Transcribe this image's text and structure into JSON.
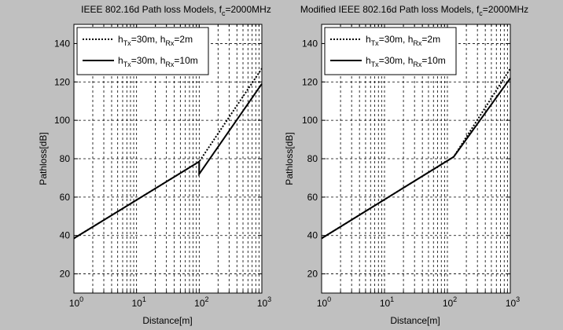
{
  "figure": {
    "background": "#c0c0c0"
  },
  "chart_data": [
    {
      "type": "line",
      "title": "IEEE 802.16d Path loss Models, f",
      "title_sub": "c",
      "title_tail": "=2000MHz",
      "xlabel": "Distance[m]",
      "ylabel": "Pathloss[dB]",
      "xscale": "log",
      "xlim": [
        1,
        1000
      ],
      "ylim": [
        10,
        150
      ],
      "xticks": [
        1,
        10,
        100,
        1000
      ],
      "xtick_labels": [
        {
          "base": "10",
          "exp": "0"
        },
        {
          "base": "10",
          "exp": "1"
        },
        {
          "base": "10",
          "exp": "2"
        },
        {
          "base": "10",
          "exp": "3"
        }
      ],
      "yticks": [
        20,
        40,
        60,
        80,
        100,
        120,
        140
      ],
      "ytick_labels": [
        "20",
        "40",
        "60",
        "80",
        "100",
        "120",
        "140"
      ],
      "grid": true,
      "grid_style": "dashed",
      "legend_position": "top-left",
      "series": [
        {
          "legend": {
            "h1": "h",
            "s1": "Tx",
            "m1": "=30m, h",
            "s2": "Rx",
            "t": "=2m"
          },
          "style": "dotted",
          "x": [
            1,
            100,
            1000
          ],
          "y": [
            38.5,
            78.5,
            127
          ]
        },
        {
          "legend": {
            "h1": "h",
            "s1": "Tx",
            "m1": "=30m, h",
            "s2": "Rx",
            "t": "=10m"
          },
          "style": "solid",
          "x": [
            1,
            100,
            100,
            1000
          ],
          "y": [
            38.5,
            78.5,
            72,
            119
          ]
        }
      ]
    },
    {
      "type": "line",
      "title": "Modified IEEE 802.16d Path loss Models, f",
      "title_sub": "c",
      "title_tail": "=2000MHz",
      "xlabel": "Distance[m]",
      "ylabel": "Pathloss[dB]",
      "xscale": "log",
      "xlim": [
        1,
        1000
      ],
      "ylim": [
        10,
        150
      ],
      "xticks": [
        1,
        10,
        100,
        1000
      ],
      "xtick_labels": [
        {
          "base": "10",
          "exp": "0"
        },
        {
          "base": "10",
          "exp": "1"
        },
        {
          "base": "10",
          "exp": "2"
        },
        {
          "base": "10",
          "exp": "3"
        }
      ],
      "yticks": [
        20,
        40,
        60,
        80,
        100,
        120,
        140
      ],
      "ytick_labels": [
        "20",
        "40",
        "60",
        "80",
        "100",
        "120",
        "140"
      ],
      "grid": true,
      "grid_style": "dashed",
      "legend_position": "top-left",
      "series": [
        {
          "legend": {
            "h1": "h",
            "s1": "Tx",
            "m1": "=30m, h",
            "s2": "Rx",
            "t": "=2m"
          },
          "style": "dotted",
          "x": [
            1,
            126,
            1000
          ],
          "y": [
            38.5,
            81,
            127
          ]
        },
        {
          "legend": {
            "h1": "h",
            "s1": "Tx",
            "m1": "=30m, h",
            "s2": "Rx",
            "t": "=10m"
          },
          "style": "solid",
          "x": [
            1,
            126,
            1000
          ],
          "y": [
            38.5,
            81,
            122
          ]
        }
      ]
    }
  ]
}
